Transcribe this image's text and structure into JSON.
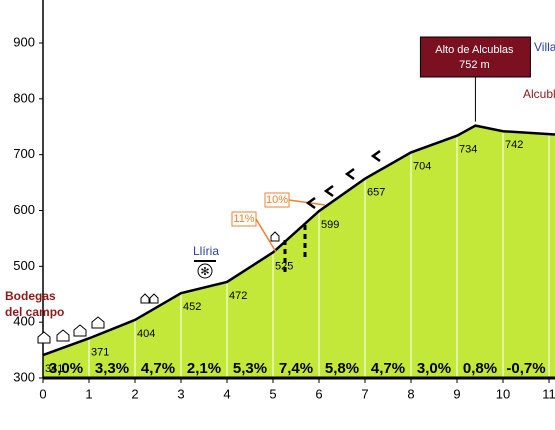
{
  "chart_data": {
    "type": "area",
    "x": [
      0,
      1,
      2,
      3,
      4,
      5,
      6,
      7,
      8,
      9,
      9.4,
      10,
      11.13
    ],
    "values": [
      341,
      371,
      404,
      452,
      472,
      525,
      599,
      657,
      704,
      734,
      752,
      742,
      736
    ],
    "value_labels": [
      null,
      null,
      null,
      null,
      null,
      null,
      null,
      null,
      null,
      null,
      "752 m",
      null,
      null
    ],
    "color": "#c4e83a",
    "line_color": "#000000",
    "gradients": {
      "values": [
        3.0,
        3.3,
        4.7,
        2.1,
        5.3,
        7.4,
        5.8,
        4.7,
        3.0,
        0.8,
        -0.7
      ],
      "value_labels": [
        "3,0%",
        "3,3%",
        "4,7%",
        "2,1%",
        "5,3%",
        "7,4%",
        "5,8%",
        "4,7%",
        "3,0%",
        "0,8%",
        "-0,7%"
      ]
    },
    "xlim": [
      0,
      11.13
    ],
    "ylim": [
      300,
      977
    ],
    "xticks": [
      0,
      1,
      2,
      3,
      4,
      5,
      6,
      7,
      8,
      9,
      10,
      11
    ],
    "yticks": [
      300,
      400,
      500,
      600,
      700,
      800,
      900
    ],
    "peak_title": "Alto de Alcublas",
    "annotations": {
      "bodegas_1": "Bodegas",
      "bodegas_2": "del campo",
      "liria": "Llíria",
      "villa": "Villa",
      "alcublas": "Alcubla",
      "slope_1": "11%",
      "slope_2": "10%"
    }
  }
}
